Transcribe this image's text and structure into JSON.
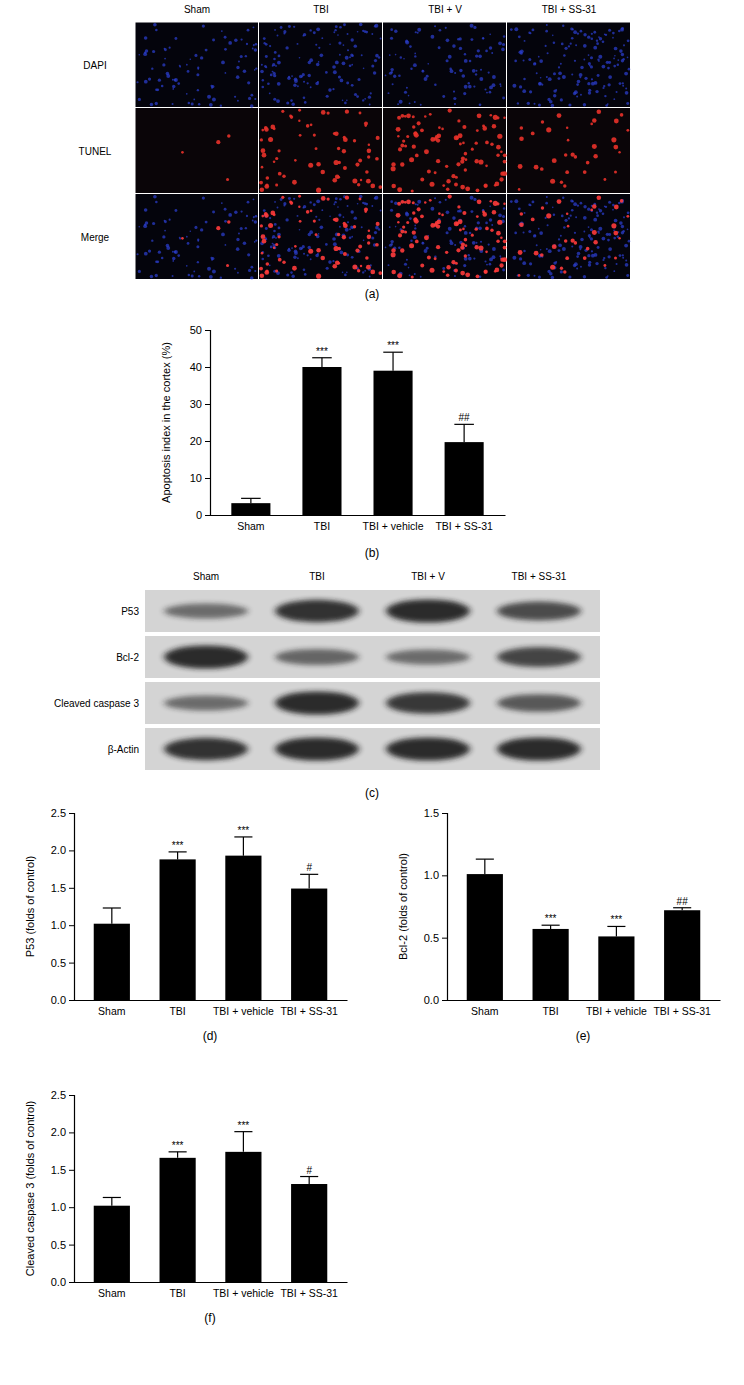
{
  "chart_data": [
    {
      "type": "image_grid",
      "caption": "(a)",
      "columns": [
        "Sham",
        "TBI",
        "TBI + V",
        "TBI + SS-31"
      ],
      "rows": [
        "DAPI",
        "TUNEL",
        "Merge"
      ]
    },
    {
      "type": "bar",
      "caption": "(b)",
      "y_label": "Apoptosis index in the cortex (%)",
      "categories": [
        "Sham",
        "TBI",
        "TBI + vehicle",
        "TBI + SS-31"
      ],
      "values": [
        3.2,
        40,
        39,
        19.7
      ],
      "errors": [
        1.3,
        2.5,
        5,
        4.8
      ],
      "annotations": [
        null,
        "***",
        "***",
        "##"
      ],
      "color": "#000000",
      "ylim": [
        0,
        50
      ],
      "yticks": [
        0,
        10,
        20,
        30,
        40,
        50
      ]
    },
    {
      "type": "blot",
      "caption": "(c)",
      "columns": [
        "Sham",
        "TBI",
        "TBI + V",
        "TBI + SS-31"
      ],
      "rows": [
        "P53",
        "Bcl-2",
        "Cleaved caspase 3",
        "β-Actin"
      ]
    },
    {
      "type": "bar",
      "caption": "(d)",
      "y_label": "P53 (folds of control)",
      "categories": [
        "Sham",
        "TBI",
        "TBI + vehicle",
        "TBI + SS-31"
      ],
      "values": [
        1.02,
        1.88,
        1.93,
        1.49
      ],
      "errors": [
        0.21,
        0.1,
        0.25,
        0.19
      ],
      "annotations": [
        null,
        "***",
        "***",
        "#"
      ],
      "color": "#000000",
      "ylim": [
        0,
        2.5
      ],
      "yticks": [
        {
          "value": 0,
          "label": "0.0"
        },
        0.5,
        {
          "value": 1,
          "label": "1.0"
        },
        1.5,
        {
          "value": 2,
          "label": "2.0"
        },
        2.5
      ]
    },
    {
      "type": "bar",
      "caption": "(e)",
      "y_label": "Bcl-2 (folds of control)",
      "categories": [
        "Sham",
        "TBI",
        "TBI + vehicle",
        "TBI + SS-31"
      ],
      "values": [
        1.01,
        0.57,
        0.51,
        0.72
      ],
      "errors": [
        0.12,
        0.03,
        0.08,
        0.02
      ],
      "annotations": [
        null,
        "***",
        "***",
        "##"
      ],
      "color": "#000000",
      "ylim": [
        0,
        1.5
      ],
      "yticks": [
        {
          "value": 0,
          "label": "0.0"
        },
        0.5,
        {
          "value": 1,
          "label": "1.0"
        },
        1.5
      ]
    },
    {
      "type": "bar",
      "caption": "(f)",
      "y_label": "Cleaved caspase 3 (folds of control)",
      "categories": [
        "Sham",
        "TBI",
        "TBI + vehicle",
        "TBI + SS-31"
      ],
      "values": [
        1.02,
        1.66,
        1.74,
        1.31
      ],
      "errors": [
        0.11,
        0.08,
        0.27,
        0.1
      ],
      "annotations": [
        null,
        "***",
        "***",
        "#"
      ],
      "color": "#000000",
      "ylim": [
        0,
        2.5
      ],
      "yticks": [
        {
          "value": 0,
          "label": "0.0"
        },
        0.5,
        {
          "value": 1,
          "label": "1.0"
        },
        1.5,
        {
          "value": 2,
          "label": "2.0"
        },
        2.5
      ]
    }
  ]
}
